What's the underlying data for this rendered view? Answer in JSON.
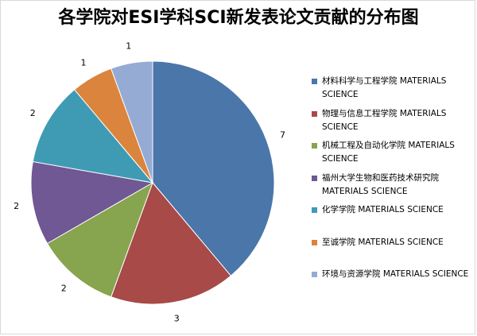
{
  "chart_data": {
    "type": "pie",
    "title": "各学院对ESI学科SCI新发表论文贡献的分布图",
    "slices": [
      {
        "label": "材料科学与工程学院 MATERIALS SCIENCE",
        "value": 7,
        "color": "#4a76aa"
      },
      {
        "label": "物理与信息工程学院 MATERIALS SCIENCE",
        "value": 3,
        "color": "#a84a48"
      },
      {
        "label": "机械工程及自动化学院 MATERIALS SCIENCE",
        "value": 2,
        "color": "#87a44e"
      },
      {
        "label": "福州大学生物和医药技术研究院 MATERIALS SCIENCE",
        "value": 2,
        "color": "#6f5893"
      },
      {
        "label": "化学学院 MATERIALS SCIENCE",
        "value": 2,
        "color": "#3f9bb4"
      },
      {
        "label": "至诚学院 MATERIALS SCIENCE",
        "value": 1,
        "color": "#db843d"
      },
      {
        "label": "环境与资源学院 MATERIALS SCIENCE",
        "value": 1,
        "color": "#95abd4"
      }
    ],
    "legend_position": "right"
  }
}
